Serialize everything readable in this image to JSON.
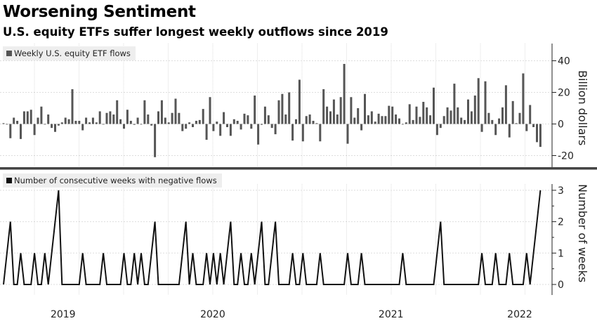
{
  "title": "Worsening Sentiment",
  "subtitle": "U.S. equity ETFs suffer longest weekly outflows since 2019",
  "colors": {
    "bars": "#555555",
    "line": "#111111",
    "divider": "#444444",
    "grid": "#dddddd"
  },
  "chart_data": [
    {
      "type": "bar",
      "legend": "Weekly U.S. equity ETF flows",
      "legend_placement": "top-left",
      "ylabel": "Billion dollars",
      "ylim": [
        -27,
        49
      ],
      "yticks": [
        40,
        20,
        0,
        -20
      ],
      "ytick_labels": [
        "40",
        "20",
        "0",
        "-20"
      ],
      "grid": true,
      "values": [
        0.5,
        -0.3,
        -9,
        4,
        2,
        -9.5,
        8,
        8,
        9,
        -7,
        4,
        11,
        -0.3,
        6,
        -2.5,
        -5,
        -1,
        1,
        4,
        3,
        22,
        2,
        2,
        -4,
        4,
        1,
        4,
        1,
        8,
        -0.3,
        7,
        8,
        6,
        15,
        3,
        -3,
        9,
        2,
        -0.5,
        4,
        -0.3,
        15,
        6,
        -1,
        -21,
        8,
        15,
        4,
        1,
        7,
        16,
        7,
        -4.5,
        -3,
        1,
        -2,
        2,
        2.5,
        9.5,
        -10,
        17,
        -4.5,
        1.5,
        -7.5,
        7.5,
        -2,
        -7.5,
        3,
        2,
        -3.5,
        6.5,
        5.5,
        -3,
        18,
        -13,
        -0.5,
        11,
        5.5,
        -2.5,
        -6.5,
        15,
        19,
        6,
        20,
        -10.5,
        3,
        28,
        -11,
        5,
        6,
        2,
        0.5,
        -11,
        22,
        11,
        8,
        15.5,
        6,
        17,
        38,
        -12.5,
        17,
        4,
        10,
        -4,
        19,
        5.5,
        8,
        1.5,
        6.5,
        5,
        5,
        11.5,
        11,
        6,
        3.5,
        -0.3,
        1,
        12.5,
        2.5,
        11,
        4.5,
        14,
        10.5,
        5.5,
        23,
        -7,
        -2.5,
        5,
        10.5,
        8.5,
        25.5,
        10.5,
        4,
        2.5,
        15.5,
        8,
        18,
        29,
        -5,
        27,
        7,
        2.5,
        -7,
        3.5,
        10.5,
        24.5,
        -8.5,
        14.5,
        0.5,
        7,
        32,
        -4.5,
        12,
        -2,
        -11.5,
        -14.5
      ]
    },
    {
      "type": "line",
      "legend": "Number of consecutive weeks with negative flows",
      "legend_placement": "top-left",
      "ylabel": "Number of weeks",
      "ylim": [
        -0.35,
        3.3
      ],
      "yticks": [
        3,
        2,
        1,
        0
      ],
      "ytick_labels": [
        "3",
        "2",
        "1",
        "0"
      ],
      "grid": true,
      "values": [
        0,
        1,
        2,
        0,
        0,
        1,
        0,
        0,
        0,
        1,
        0,
        0,
        1,
        0,
        1,
        2,
        3,
        0,
        0,
        0,
        0,
        0,
        0,
        1,
        0,
        0,
        0,
        0,
        0,
        1,
        0,
        0,
        0,
        0,
        0,
        1,
        0,
        0,
        1,
        0,
        1,
        0,
        0,
        1,
        2,
        0,
        0,
        0,
        0,
        0,
        0,
        0,
        1,
        2,
        0,
        1,
        0,
        0,
        0,
        1,
        0,
        1,
        0,
        1,
        0,
        1,
        2,
        0,
        0,
        1,
        0,
        0,
        1,
        0,
        1,
        2,
        0,
        0,
        1,
        2,
        0,
        0,
        0,
        0,
        1,
        0,
        0,
        1,
        0,
        0,
        0,
        0,
        1,
        0,
        0,
        0,
        0,
        0,
        0,
        0,
        1,
        0,
        0,
        0,
        1,
        0,
        0,
        0,
        0,
        0,
        0,
        0,
        0,
        0,
        0,
        0,
        1,
        0,
        0,
        0,
        0,
        0,
        0,
        0,
        0,
        0,
        1,
        2,
        0,
        0,
        0,
        0,
        0,
        0,
        0,
        0,
        0,
        0,
        0,
        1,
        0,
        0,
        0,
        1,
        0,
        0,
        0,
        1,
        0,
        0,
        0,
        0,
        1,
        0,
        1,
        2,
        3
      ]
    }
  ],
  "x_ticks": [
    {
      "label": "2019",
      "index": 17.3
    },
    {
      "label": "2020",
      "index": 60.8
    },
    {
      "label": "2021",
      "index": 112.6
    },
    {
      "label": "2022",
      "index": 150
    }
  ]
}
